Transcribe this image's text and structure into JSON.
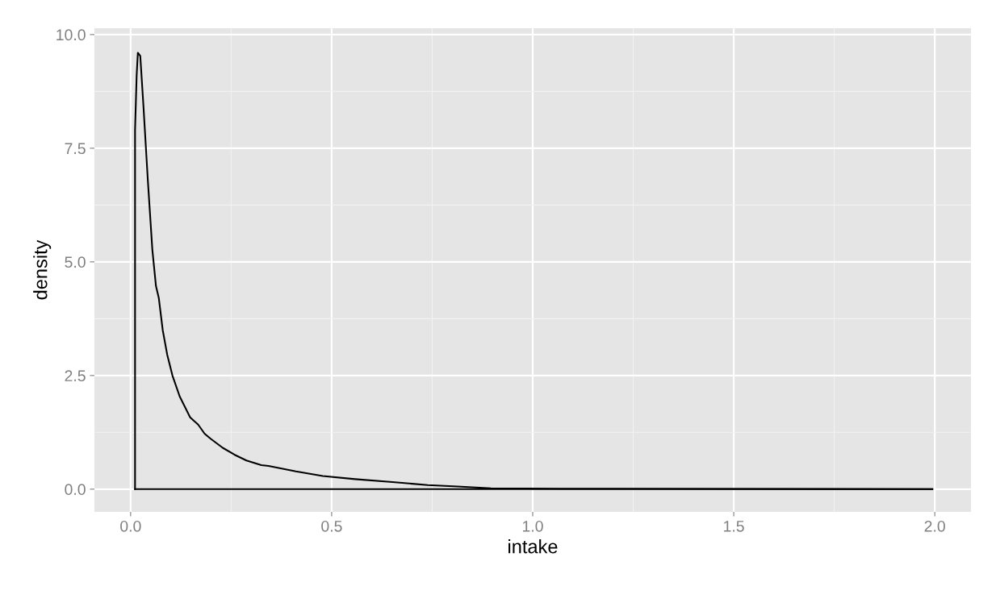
{
  "chart_data": {
    "type": "line",
    "xlabel": "intake",
    "ylabel": "density",
    "x": [
      0.011,
      0.011,
      0.015,
      0.018,
      0.024,
      0.032,
      0.043,
      0.054,
      0.063,
      0.07,
      0.08,
      0.091,
      0.104,
      0.122,
      0.148,
      0.168,
      0.184,
      0.199,
      0.229,
      0.258,
      0.288,
      0.325,
      0.343,
      0.411,
      0.478,
      0.558,
      0.645,
      0.739,
      0.813,
      0.896,
      1.07,
      1.994
    ],
    "series": [
      {
        "color": "#000000",
        "values": [
          0,
          7.9,
          9.1,
          9.6,
          9.53,
          8.41,
          6.77,
          5.27,
          4.47,
          4.21,
          3.49,
          2.96,
          2.5,
          2.04,
          1.58,
          1.42,
          1.22,
          1.11,
          0.91,
          0.76,
          0.63,
          0.53,
          0.51,
          0.39,
          0.29,
          0.22,
          0.16,
          0.09,
          0.06,
          0.02,
          0.01,
          0
        ]
      },
      {
        "color": "#000000",
        "x": [
          0.011,
          1.994
        ],
        "values": [
          0,
          0
        ]
      }
    ],
    "xlim": [
      -0.09,
      2.09
    ],
    "ylim": [
      -0.5,
      10.14
    ],
    "xticks": [
      {
        "value": 0,
        "label": "0.0"
      },
      {
        "value": 0.5,
        "label": "0.5"
      },
      {
        "value": 1,
        "label": "1.0"
      },
      {
        "value": 1.5,
        "label": "1.5"
      },
      {
        "value": 2,
        "label": "2.0"
      }
    ],
    "yticks": [
      {
        "value": 0,
        "label": "0.0"
      },
      {
        "value": 2.5,
        "label": "2.5"
      },
      {
        "value": 5,
        "label": "5.0"
      },
      {
        "value": 7.5,
        "label": "7.5"
      },
      {
        "value": 10,
        "label": "10.0"
      }
    ],
    "grid": true,
    "line_style": "solid",
    "marker": "none"
  }
}
